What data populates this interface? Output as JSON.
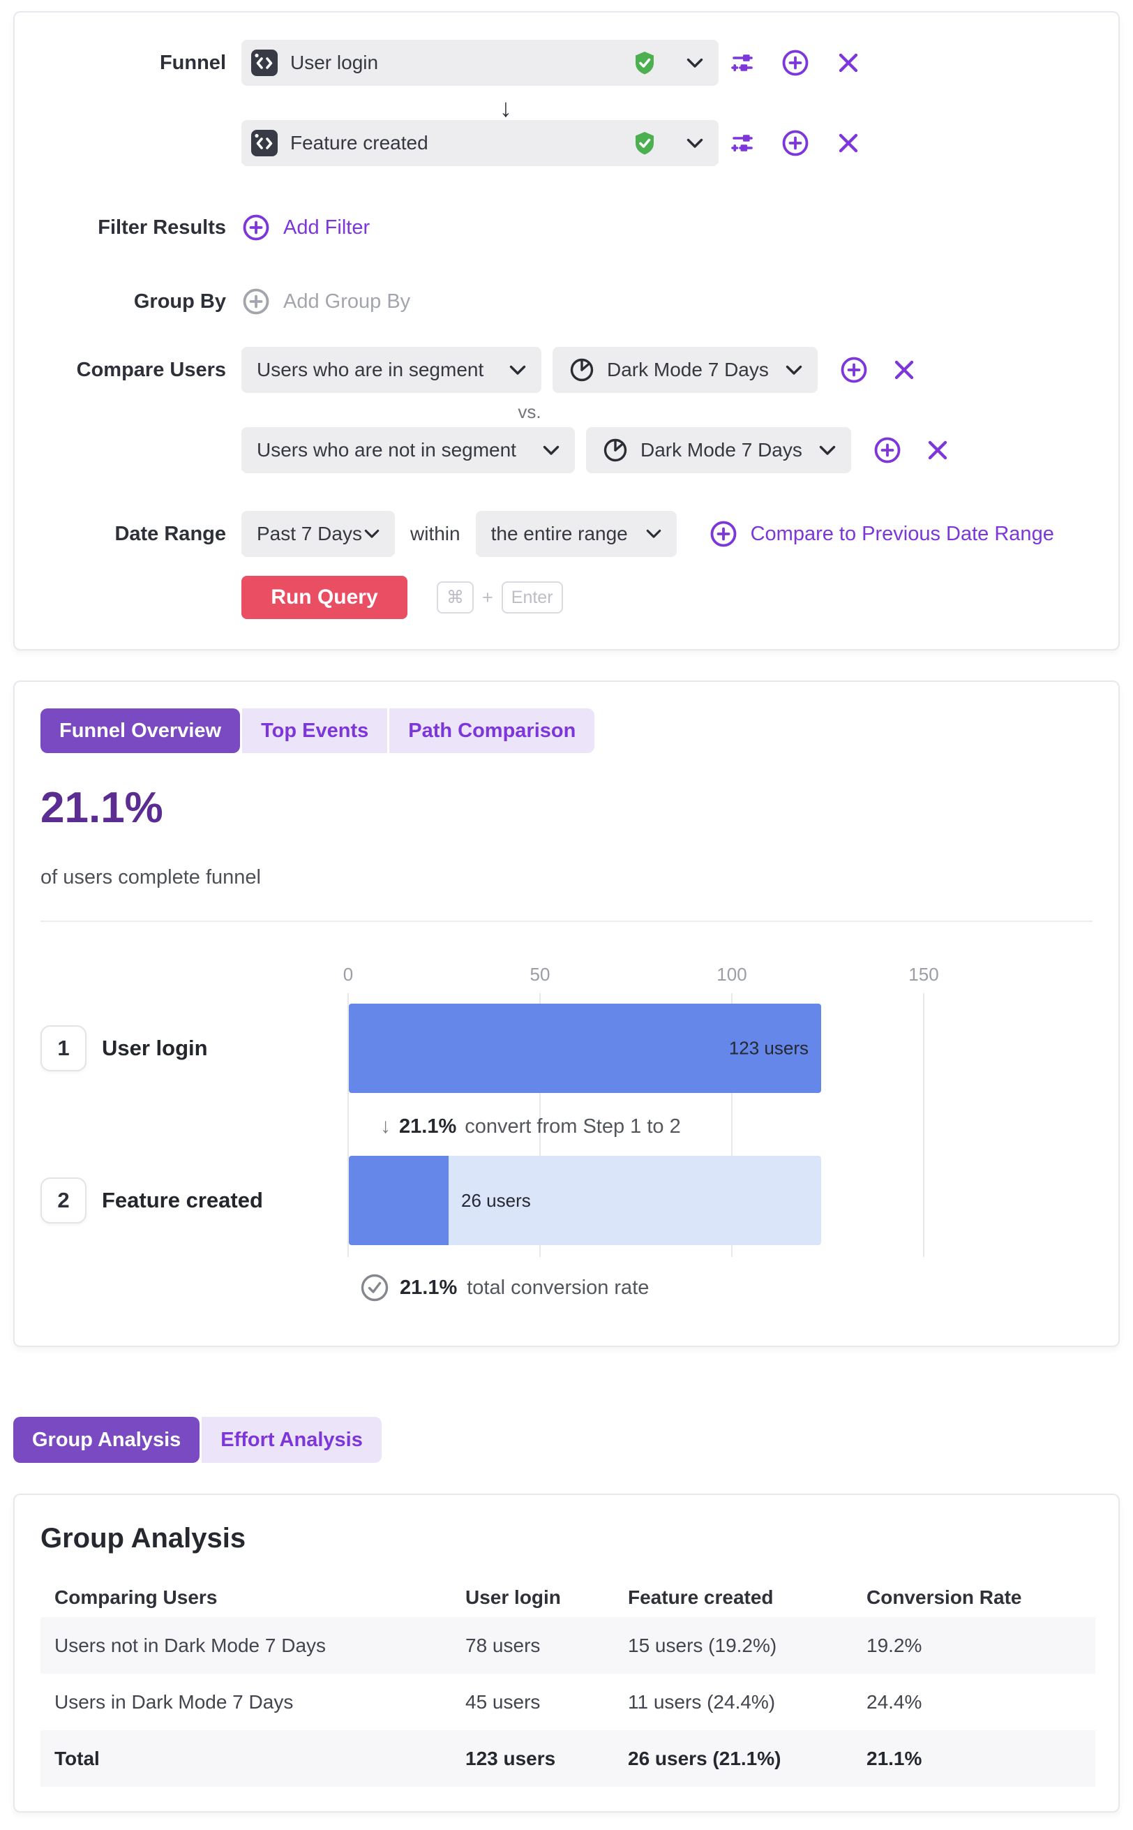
{
  "colors": {
    "accent_purple": "#7c36d9",
    "deep_purple": "#5b2d92",
    "tab_active_bg": "#7a4ac2",
    "tab_inactive_bg": "#ece4f8",
    "run_button_red": "#e94e63",
    "bar_blue": "#6687ea",
    "bar_track_blue": "#dbe5fa",
    "shield_green": "#4caf50"
  },
  "query_builder": {
    "funnel_label": "Funnel",
    "steps": [
      {
        "event_name": "User login"
      },
      {
        "event_name": "Feature created"
      }
    ],
    "filter_results": {
      "label": "Filter Results",
      "add_label": "Add Filter"
    },
    "group_by": {
      "label": "Group By",
      "add_label": "Add Group By"
    },
    "compare_users": {
      "label": "Compare Users",
      "vs_label": "vs.",
      "rows": [
        {
          "condition": "Users who are in segment",
          "segment": "Dark Mode 7 Days"
        },
        {
          "condition": "Users who are not in segment",
          "segment": "Dark Mode 7 Days"
        }
      ]
    },
    "date_range": {
      "label": "Date Range",
      "range_value": "Past 7 Days",
      "within_label": "within",
      "scope_value": "the entire range",
      "compare_link": "Compare to Previous Date Range"
    },
    "run_query": {
      "button_label": "Run Query",
      "shortcut_key1": "⌘",
      "shortcut_plus": "+",
      "shortcut_key2": "Enter"
    }
  },
  "results_panel": {
    "tabs": [
      {
        "label": "Funnel Overview",
        "active": true
      },
      {
        "label": "Top Events",
        "active": false
      },
      {
        "label": "Path Comparison",
        "active": false
      }
    ],
    "headline_value": "21.1%",
    "headline_caption": "of users complete funnel"
  },
  "chart_data": {
    "type": "bar",
    "orientation": "horizontal",
    "title": "Funnel Overview",
    "categories": [
      "User login",
      "Feature created"
    ],
    "step_numbers": [
      "1",
      "2"
    ],
    "values": [
      123,
      26
    ],
    "value_labels": [
      "123 users",
      "26 users"
    ],
    "x_ticks": [
      "0",
      "50",
      "100",
      "150"
    ],
    "xlim": [
      0,
      150
    ],
    "grid": true,
    "legend": "none",
    "step_conversion": {
      "pct": "21.1%",
      "text": "convert from Step 1 to 2"
    },
    "total_conversion": {
      "pct": "21.1%",
      "text": "total conversion rate"
    }
  },
  "analysis_panel": {
    "tabs": [
      {
        "label": "Group Analysis",
        "active": true
      },
      {
        "label": "Effort Analysis",
        "active": false
      }
    ],
    "title": "Group Analysis",
    "columns": [
      "Comparing Users",
      "User login",
      "Feature created",
      "Conversion Rate"
    ],
    "rows": [
      {
        "cells": [
          "Users not in Dark Mode 7 Days",
          "78 users",
          "15 users (19.2%)",
          "19.2%"
        ]
      },
      {
        "cells": [
          "Users in Dark Mode 7 Days",
          "45 users",
          "11 users (24.4%)",
          "24.4%"
        ]
      },
      {
        "cells": [
          "Total",
          "123 users",
          "26 users (21.1%)",
          "21.1%"
        ]
      }
    ]
  }
}
